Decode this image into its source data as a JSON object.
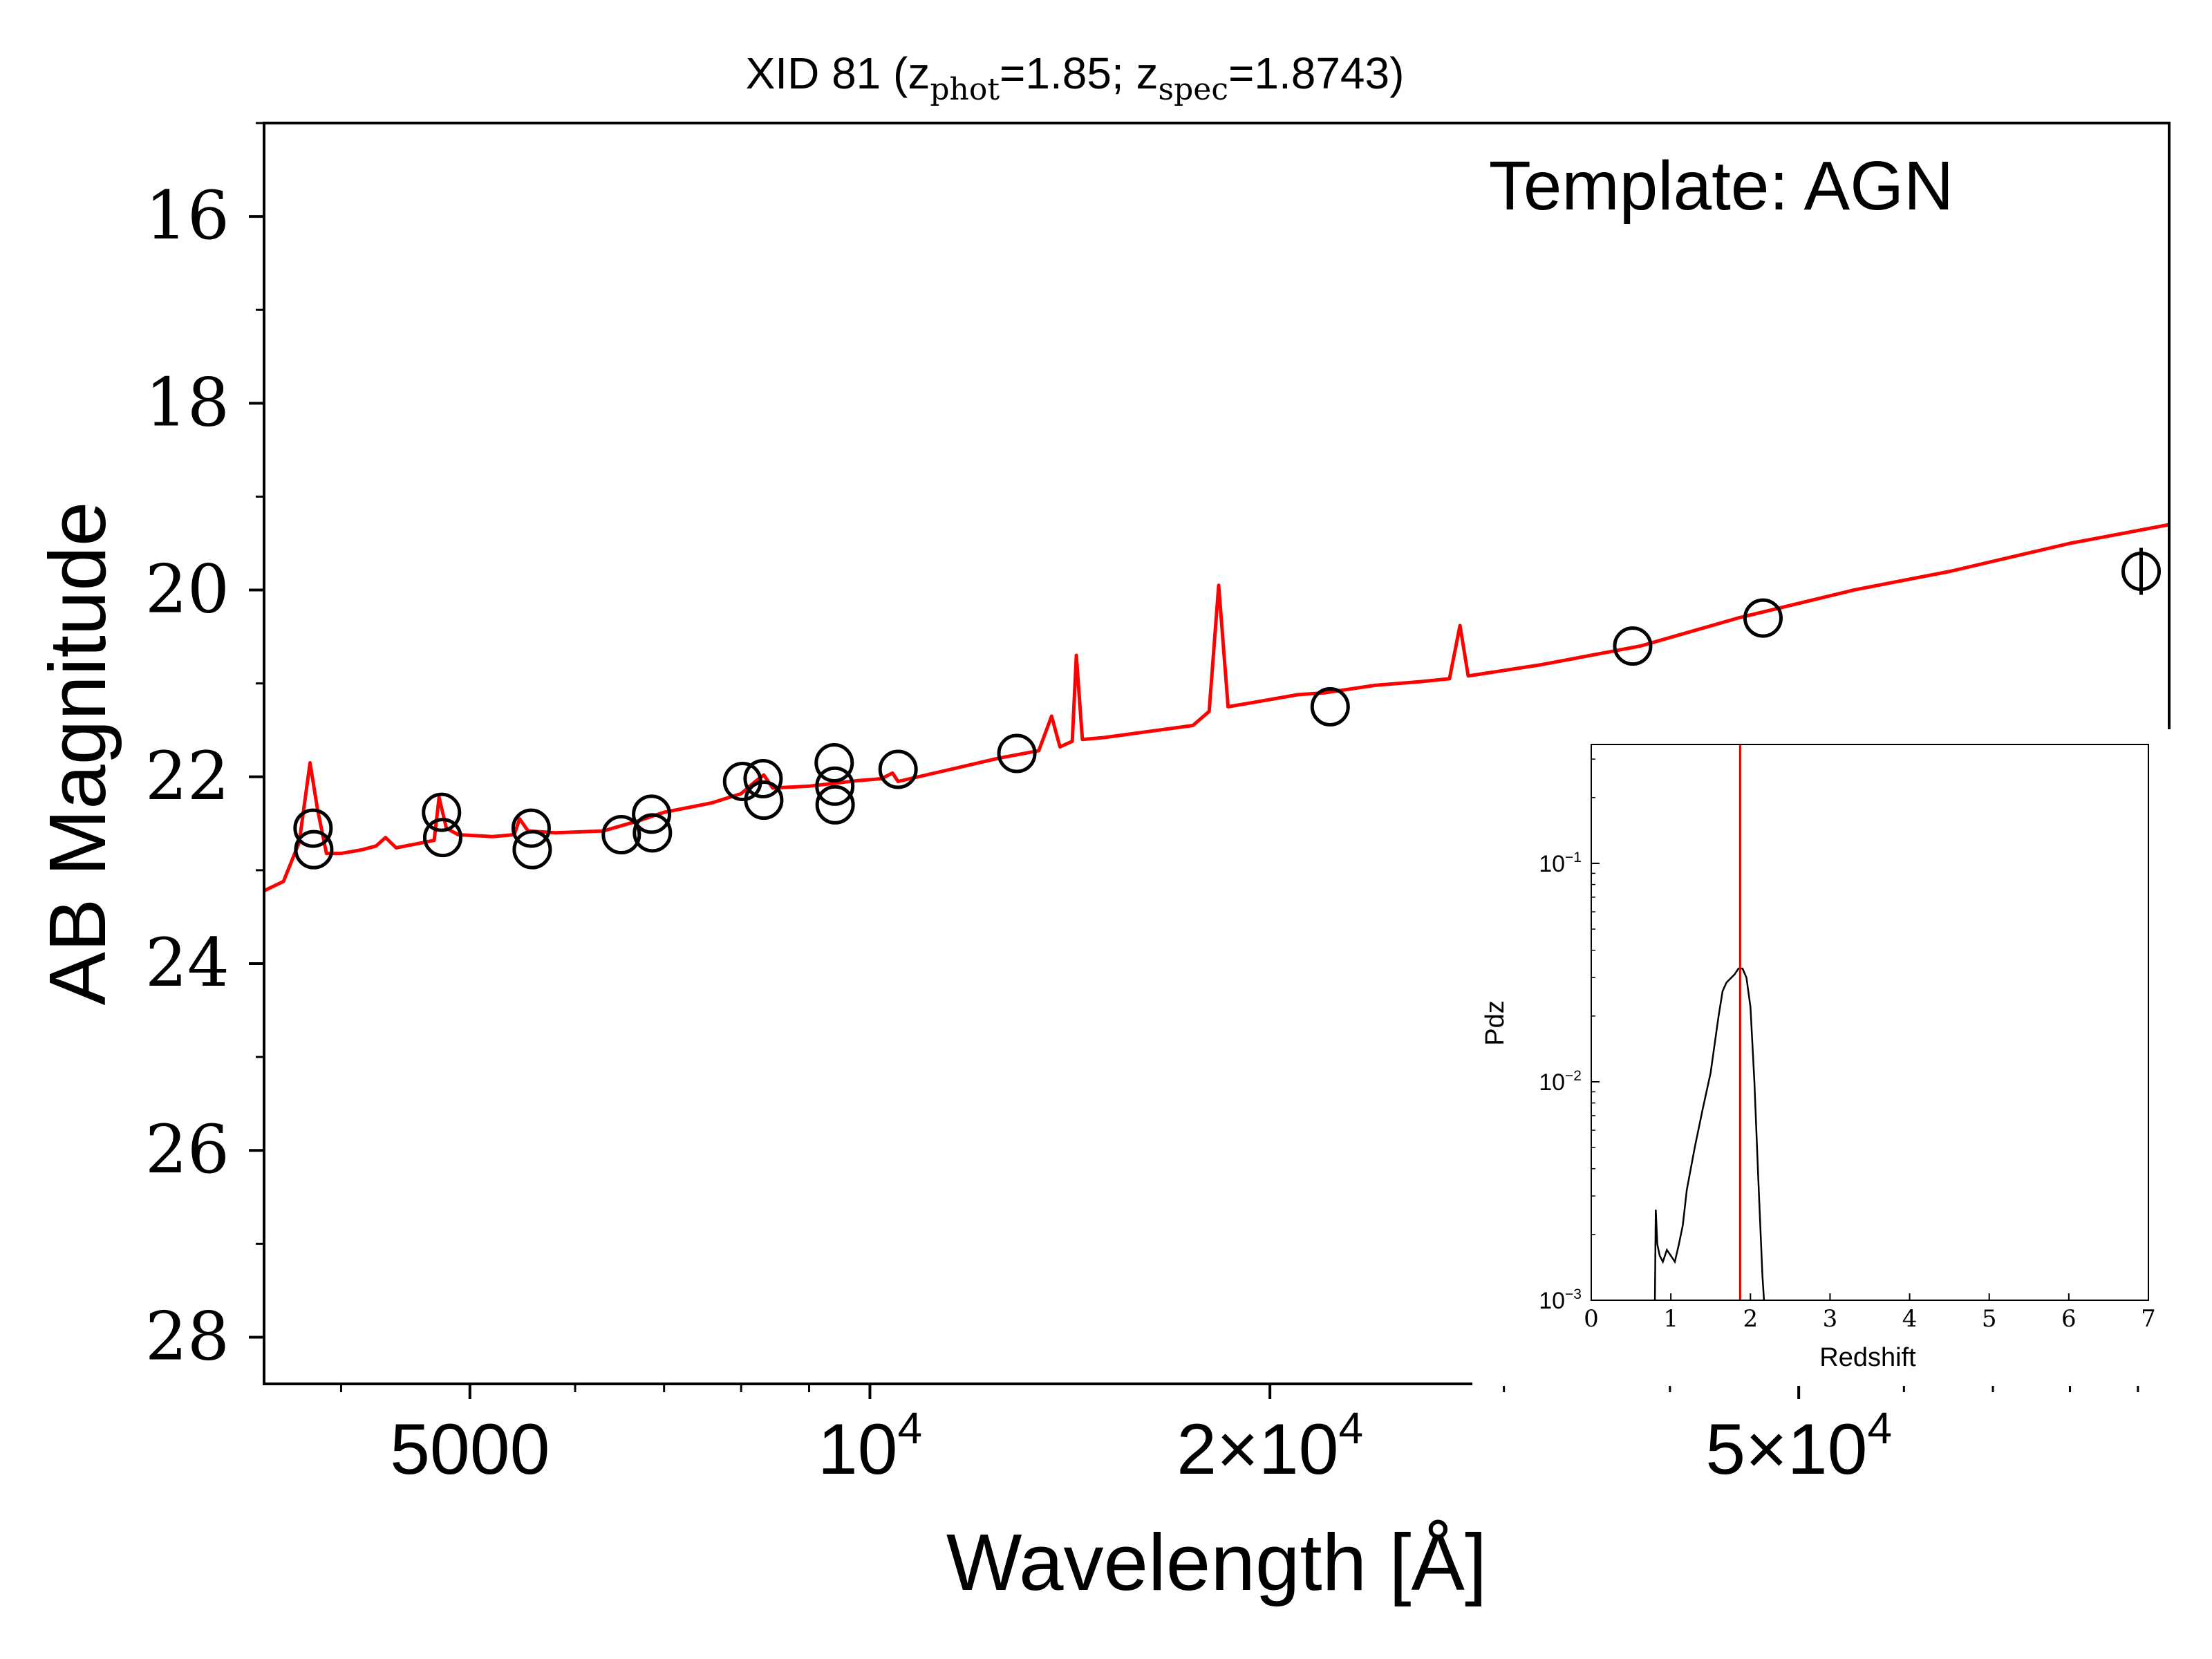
{
  "chart_data": [
    {
      "type": "scatter",
      "title": {
        "prefix": "XID 81 (z",
        "sub1": "phot",
        "mid": "=1.85; z",
        "sub2": "spec",
        "suffix": "=1.8743)"
      },
      "annotation": "Template: AGN",
      "xlabel": "Wavelength [Å]",
      "ylabel": "AB Magnitude",
      "x_scale": "log",
      "xlim": [
        3500,
        95000
      ],
      "ylim": [
        28.5,
        15.0
      ],
      "y_inverted": true,
      "grid": false,
      "x_ticks": [
        {
          "value": 5000,
          "base": "5000",
          "exp": ""
        },
        {
          "value": 10000,
          "base": "10",
          "exp": "4"
        },
        {
          "value": 20000,
          "base": "2×10",
          "exp": "4"
        },
        {
          "value": 50000,
          "base": "5×10",
          "exp": "4"
        }
      ],
      "y_ticks": [
        16,
        18,
        20,
        22,
        24,
        26,
        28
      ],
      "colors": {
        "model": "#ff0000",
        "points": "#000000"
      },
      "series": [
        {
          "kind": "line",
          "points": [
            [
              3500,
              23.22
            ],
            [
              3620,
              23.12
            ],
            [
              3720,
              22.7
            ],
            [
              3790,
              21.85
            ],
            [
              3840,
              22.35
            ],
            [
              3900,
              22.82
            ],
            [
              4000,
              22.82
            ],
            [
              4150,
              22.78
            ],
            [
              4250,
              22.74
            ],
            [
              4320,
              22.65
            ],
            [
              4400,
              22.76
            ],
            [
              4550,
              22.72
            ],
            [
              4700,
              22.68
            ],
            [
              4740,
              22.22
            ],
            [
              4800,
              22.55
            ],
            [
              4900,
              22.62
            ],
            [
              5200,
              22.64
            ],
            [
              5400,
              22.62
            ],
            [
              5450,
              22.45
            ],
            [
              5530,
              22.58
            ],
            [
              5800,
              22.6
            ],
            [
              6300,
              22.58
            ],
            [
              6700,
              22.47
            ],
            [
              7000,
              22.38
            ],
            [
              7600,
              22.28
            ],
            [
              8000,
              22.18
            ],
            [
              8200,
              22.05
            ],
            [
              8320,
              21.98
            ],
            [
              8450,
              22.12
            ],
            [
              9000,
              22.1
            ],
            [
              9800,
              22.04
            ],
            [
              10200,
              22.02
            ],
            [
              10400,
              21.96
            ],
            [
              10500,
              22.05
            ],
            [
              11500,
              21.92
            ],
            [
              12500,
              21.8
            ],
            [
              13400,
              21.72
            ],
            [
              13700,
              21.35
            ],
            [
              13900,
              21.68
            ],
            [
              14200,
              21.62
            ],
            [
              14300,
              20.7
            ],
            [
              14450,
              21.6
            ],
            [
              15000,
              21.58
            ],
            [
              16500,
              21.5
            ],
            [
              17500,
              21.45
            ],
            [
              18000,
              21.3
            ],
            [
              18300,
              19.95
            ],
            [
              18600,
              21.25
            ],
            [
              19500,
              21.2
            ],
            [
              21000,
              21.12
            ],
            [
              22000,
              21.1
            ],
            [
              24000,
              21.02
            ],
            [
              26000,
              20.98
            ],
            [
              27300,
              20.95
            ],
            [
              27800,
              20.38
            ],
            [
              28200,
              20.92
            ],
            [
              32000,
              20.8
            ],
            [
              38000,
              20.6
            ],
            [
              45000,
              20.3
            ],
            [
              55000,
              20.0
            ],
            [
              65000,
              19.8
            ],
            [
              80000,
              19.5
            ],
            [
              95000,
              19.3
            ]
          ]
        },
        {
          "kind": "scatter",
          "points": [
            [
              3810,
              22.55
            ],
            [
              3815,
              22.78
            ],
            [
              4760,
              22.38
            ],
            [
              4770,
              22.65
            ],
            [
              5560,
              22.55
            ],
            [
              5570,
              22.78
            ],
            [
              6500,
              22.62
            ],
            [
              6850,
              22.4
            ],
            [
              6860,
              22.6
            ],
            [
              8020,
              22.05
            ],
            [
              8310,
              22.02
            ],
            [
              8320,
              22.25
            ],
            [
              9400,
              21.85
            ],
            [
              9410,
              22.1
            ],
            [
              9415,
              22.3
            ],
            [
              10500,
              21.92
            ],
            [
              12900,
              21.75
            ],
            [
              22200,
              21.25
            ],
            [
              37500,
              20.6
            ],
            [
              47000,
              20.3
            ],
            [
              90500,
              19.8
            ]
          ]
        }
      ]
    },
    {
      "type": "line",
      "xlabel": "Redshift",
      "ylabel": "Pdz",
      "x_scale": "linear",
      "y_scale": "log",
      "xlim": [
        0,
        7
      ],
      "ylim": [
        0.001,
        0.35
      ],
      "grid": false,
      "x_ticks": [
        "0",
        "1",
        "2",
        "3",
        "4",
        "5",
        "6",
        "7"
      ],
      "y_ticks": [
        {
          "value": 0.1,
          "base": "10",
          "exp": "−1"
        },
        {
          "value": 0.01,
          "base": "10",
          "exp": "−2"
        },
        {
          "value": 0.001,
          "base": "10",
          "exp": "−3"
        }
      ],
      "marker_line_x": 1.87,
      "colors": {
        "curve": "#000000",
        "marker": "#e00000"
      },
      "series": [
        {
          "kind": "line",
          "points": [
            [
              0.8,
              0.001
            ],
            [
              0.81,
              0.0026
            ],
            [
              0.83,
              0.0018
            ],
            [
              0.86,
              0.0016
            ],
            [
              0.9,
              0.0015
            ],
            [
              0.95,
              0.0017
            ],
            [
              1.0,
              0.0016
            ],
            [
              1.05,
              0.0015
            ],
            [
              1.1,
              0.0018
            ],
            [
              1.15,
              0.0022
            ],
            [
              1.2,
              0.0032
            ],
            [
              1.3,
              0.005
            ],
            [
              1.4,
              0.0075
            ],
            [
              1.5,
              0.011
            ],
            [
              1.6,
              0.02
            ],
            [
              1.65,
              0.026
            ],
            [
              1.7,
              0.0285
            ],
            [
              1.8,
              0.031
            ],
            [
              1.85,
              0.033
            ],
            [
              1.9,
              0.033
            ],
            [
              1.95,
              0.03
            ],
            [
              2.0,
              0.022
            ],
            [
              2.05,
              0.01
            ],
            [
              2.1,
              0.0035
            ],
            [
              2.15,
              0.0013
            ],
            [
              2.17,
              0.001
            ]
          ]
        }
      ]
    }
  ]
}
